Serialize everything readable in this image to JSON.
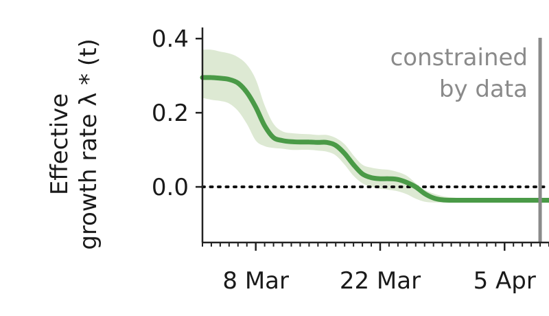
{
  "chart_data": {
    "type": "line",
    "ylabel_line1": "Effective",
    "ylabel_line2": "growth rate λ * (t)",
    "ylim": [
      -0.15,
      0.43
    ],
    "yticks": [
      {
        "value": 0.4,
        "label": "0.4"
      },
      {
        "value": 0.2,
        "label": "0.2"
      },
      {
        "value": 0.0,
        "label": "0.0"
      }
    ],
    "xlim": [
      "2020-03-02",
      "2020-04-10"
    ],
    "xticks": [
      {
        "date": "2020-03-08",
        "label": "8 Mar"
      },
      {
        "date": "2020-03-22",
        "label": "22 Mar"
      },
      {
        "date": "2020-04-05",
        "label": "5 Apr"
      }
    ],
    "minor_tick_interval_days": 1,
    "constraint_date": "2020-04-09",
    "annotation_line1": "constrained",
    "annotation_line2": "by data",
    "reference_line_y": 0.0,
    "colors": {
      "line": "#4a9a47",
      "band": "#dde9d3",
      "constraint_line": "#8a8a8a",
      "annotation": "#8a8a8a"
    },
    "series": [
      {
        "x": [
          "2020-03-02",
          "2020-03-03",
          "2020-03-04",
          "2020-03-05",
          "2020-03-06",
          "2020-03-07",
          "2020-03-08",
          "2020-03-09",
          "2020-03-10",
          "2020-03-11",
          "2020-03-12",
          "2020-03-13",
          "2020-03-14",
          "2020-03-15",
          "2020-03-16",
          "2020-03-17",
          "2020-03-18",
          "2020-03-19",
          "2020-03-20",
          "2020-03-21",
          "2020-03-22",
          "2020-03-23",
          "2020-03-24",
          "2020-03-25",
          "2020-03-26",
          "2020-03-27",
          "2020-03-28",
          "2020-03-29",
          "2020-03-30",
          "2020-03-31",
          "2020-04-01",
          "2020-04-02",
          "2020-04-03",
          "2020-04-04",
          "2020-04-05",
          "2020-04-06",
          "2020-04-07",
          "2020-04-08",
          "2020-04-09",
          "2020-04-10"
        ],
        "y": [
          0.295,
          0.295,
          0.293,
          0.29,
          0.28,
          0.255,
          0.215,
          0.165,
          0.133,
          0.125,
          0.122,
          0.121,
          0.121,
          0.12,
          0.12,
          0.112,
          0.09,
          0.06,
          0.035,
          0.025,
          0.022,
          0.022,
          0.02,
          0.012,
          0.0,
          -0.018,
          -0.03,
          -0.035,
          -0.036,
          -0.036,
          -0.036,
          -0.036,
          -0.036,
          -0.036,
          -0.036,
          -0.036,
          -0.036,
          -0.036,
          -0.036,
          -0.036
        ],
        "lower": [
          0.24,
          0.235,
          0.232,
          0.225,
          0.205,
          0.17,
          0.125,
          0.11,
          0.105,
          0.103,
          0.1,
          0.1,
          0.1,
          0.098,
          0.095,
          0.085,
          0.06,
          0.03,
          0.01,
          0.0,
          -0.005,
          -0.008,
          -0.012,
          -0.02,
          -0.032,
          -0.04,
          -0.042,
          -0.042,
          -0.042,
          -0.042,
          -0.042,
          -0.042,
          -0.042,
          -0.042,
          -0.042,
          -0.042,
          -0.042,
          -0.042,
          -0.042,
          -0.042
        ],
        "upper": [
          0.37,
          0.37,
          0.365,
          0.36,
          0.35,
          0.33,
          0.29,
          0.22,
          0.17,
          0.15,
          0.145,
          0.143,
          0.142,
          0.14,
          0.14,
          0.132,
          0.115,
          0.085,
          0.06,
          0.052,
          0.048,
          0.046,
          0.04,
          0.03,
          0.01,
          -0.008,
          -0.018,
          -0.025,
          -0.028,
          -0.03,
          -0.03,
          -0.03,
          -0.03,
          -0.03,
          -0.03,
          -0.03,
          -0.03,
          -0.03,
          -0.03,
          -0.03
        ]
      }
    ]
  }
}
